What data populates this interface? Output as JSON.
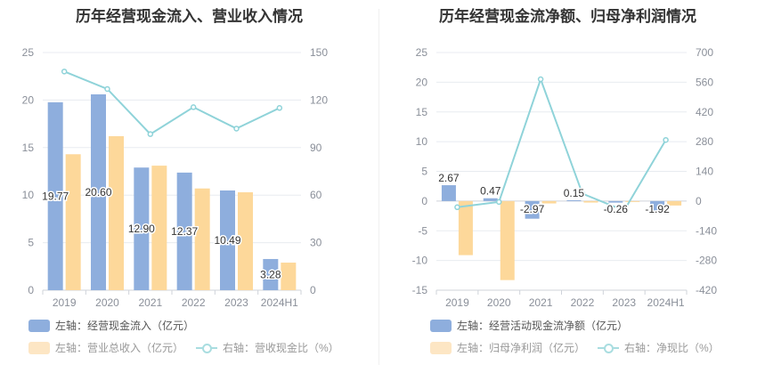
{
  "chart_data": [
    {
      "type": "bar",
      "title": "历年经营现金流入、营业收入情况",
      "categories": [
        "2019",
        "2020",
        "2021",
        "2022",
        "2023",
        "2024H1"
      ],
      "left_axis": {
        "ticks": [
          "0",
          "5",
          "10",
          "15",
          "20",
          "25"
        ],
        "ylim": [
          0,
          25
        ]
      },
      "right_axis": {
        "ticks": [
          "0",
          "30",
          "60",
          "90",
          "120",
          "150"
        ],
        "ylim": [
          0,
          150
        ]
      },
      "series": [
        {
          "name": "左轴：经营现金流入（亿元）",
          "kind": "bar",
          "axis": "left",
          "color": "#8eaedd",
          "values": [
            19.77,
            20.6,
            12.9,
            12.37,
            10.49,
            3.28
          ],
          "labels": [
            "19.77",
            "20.60",
            "12.90",
            "12.37",
            "10.49",
            "3.28"
          ]
        },
        {
          "name": "左轴：营业总收入（亿元）",
          "kind": "bar",
          "axis": "left",
          "color": "#fdd89a",
          "values": [
            14.3,
            16.2,
            13.1,
            10.7,
            10.3,
            2.9
          ]
        },
        {
          "name": "右轴：营收现金比（%）",
          "kind": "line",
          "axis": "right",
          "color": "#8fd3d9",
          "values": [
            138,
            127,
            98.5,
            115.5,
            102,
            115
          ]
        }
      ],
      "legend": [
        {
          "label": "左轴：经营现金流入（亿元）",
          "color": "#8eaedd",
          "active": true
        },
        {
          "label": "左轴：营业总收入（亿元）",
          "color": "#fde6c4",
          "active": false
        },
        {
          "label": "右轴：营收现金比（%）",
          "color": "#a9dde0",
          "active": false
        }
      ]
    },
    {
      "type": "bar",
      "title": "历年经营现金流净额、归母净利润情况",
      "categories": [
        "2019",
        "2020",
        "2021",
        "2022",
        "2023",
        "2024H1"
      ],
      "left_axis": {
        "ticks": [
          "-15",
          "-10",
          "-5",
          "0",
          "5",
          "10",
          "15",
          "20",
          "25"
        ],
        "ylim": [
          -15,
          25
        ]
      },
      "right_axis": {
        "ticks": [
          "-420",
          "-280",
          "-140",
          "0",
          "140",
          "280",
          "420",
          "560",
          "700"
        ],
        "ylim": [
          -420,
          700
        ]
      },
      "series": [
        {
          "name": "左轴：经营活动现金流净额（亿元）",
          "kind": "bar",
          "axis": "left",
          "color": "#8eaedd",
          "values": [
            2.67,
            0.47,
            -2.97,
            0.15,
            -0.26,
            -1.92
          ],
          "labels": [
            "2.67",
            "0.47",
            "-2.97",
            "0.15",
            "-0.26",
            "-1.92"
          ]
        },
        {
          "name": "左轴：归母净利润（亿元）",
          "kind": "bar",
          "axis": "left",
          "color": "#fdd89a",
          "values": [
            -9.1,
            -13.3,
            -0.4,
            -0.25,
            -0.15,
            -0.75
          ]
        },
        {
          "name": "右轴：净现比（%）",
          "kind": "line",
          "axis": "right",
          "color": "#8fd3d9",
          "values": [
            -29,
            -4,
            574,
            35,
            -45,
            288
          ]
        }
      ],
      "legend": [
        {
          "label": "左轴：经营活动现金流净额（亿元）",
          "color": "#8eaedd",
          "active": true
        },
        {
          "label": "左轴：归母净利润（亿元）",
          "color": "#fde6c4",
          "active": false
        },
        {
          "label": "右轴：净现比（%）",
          "color": "#a9dde0",
          "active": false
        }
      ]
    }
  ]
}
